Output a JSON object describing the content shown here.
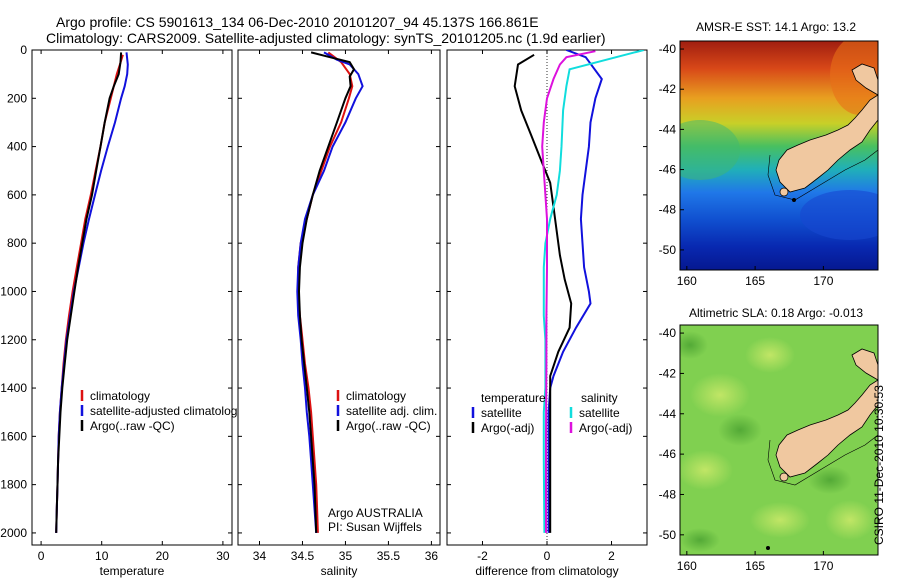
{
  "header": {
    "line1": "Argo profile: CS 5901613_134 06-Dec-2010 20101207_94 45.137S 166.861E",
    "line2": "Climatology: CARS2009. Satellite-adjusted climatology: synTS_20101205.nc (1.9d earlier)"
  },
  "stamp": "CSIRO 11-Dec-2010 10:30:53",
  "chart_data": [
    {
      "type": "line",
      "panel": "temperature",
      "xlabel": "temperature",
      "ylabel": "",
      "xlim": [
        -1.5,
        31.5
      ],
      "ylim": [
        2050,
        0
      ],
      "xticks": [
        0,
        10,
        20,
        30
      ],
      "yticks": [
        0,
        200,
        400,
        600,
        800,
        1000,
        1200,
        1400,
        1600,
        1800,
        2000
      ],
      "legend": [
        "climatology",
        "satellite-adjusted climatology",
        "Argo(..raw -QC)"
      ],
      "series": [
        {
          "name": "climatology",
          "color": "#dd1111",
          "points": [
            [
              13.5,
              20
            ],
            [
              13,
              60
            ],
            [
              12.5,
              100
            ],
            [
              11.5,
              200
            ],
            [
              10.5,
              300
            ],
            [
              9.8,
              400
            ],
            [
              9,
              500
            ],
            [
              8.2,
              600
            ],
            [
              7.3,
              700
            ],
            [
              6.6,
              800
            ],
            [
              5.9,
              900
            ],
            [
              5.2,
              1000
            ],
            [
              4.6,
              1100
            ],
            [
              4.1,
              1200
            ],
            [
              3.7,
              1300
            ],
            [
              3.4,
              1400
            ],
            [
              3.1,
              1500
            ],
            [
              2.9,
              1600
            ],
            [
              2.8,
              1700
            ],
            [
              2.7,
              1800
            ],
            [
              2.6,
              1900
            ],
            [
              2.5,
              2000
            ]
          ]
        },
        {
          "name": "satellite-adjusted climatology",
          "color": "#1111dd",
          "points": [
            [
              14.1,
              10
            ],
            [
              14.3,
              60
            ],
            [
              14.2,
              100
            ],
            [
              13.8,
              150
            ],
            [
              13.2,
              200
            ],
            [
              12.2,
              300
            ],
            [
              11,
              400
            ],
            [
              9.9,
              500
            ],
            [
              8.9,
              600
            ],
            [
              7.9,
              700
            ],
            [
              7,
              800
            ],
            [
              6.2,
              900
            ],
            [
              5.4,
              1000
            ],
            [
              4.8,
              1100
            ],
            [
              4.2,
              1200
            ],
            [
              3.8,
              1300
            ],
            [
              3.4,
              1400
            ],
            [
              3.1,
              1500
            ],
            [
              2.9,
              1600
            ],
            [
              2.8,
              1700
            ],
            [
              2.7,
              1800
            ],
            [
              2.6,
              1900
            ],
            [
              2.5,
              2000
            ]
          ]
        },
        {
          "name": "Argo(..raw -QC)",
          "color": "#000000",
          "points": [
            [
              13.2,
              10
            ],
            [
              13.1,
              50
            ],
            [
              12.8,
              100
            ],
            [
              12,
              150
            ],
            [
              11.3,
              200
            ],
            [
              10.5,
              300
            ],
            [
              9.8,
              400
            ],
            [
              9.1,
              500
            ],
            [
              8.4,
              600
            ],
            [
              7.5,
              700
            ],
            [
              6.8,
              800
            ],
            [
              6.1,
              900
            ],
            [
              5.5,
              1000
            ],
            [
              4.9,
              1100
            ],
            [
              4.3,
              1200
            ],
            [
              3.9,
              1300
            ],
            [
              3.5,
              1400
            ],
            [
              3.2,
              1500
            ],
            [
              3,
              1600
            ],
            [
              2.8,
              1700
            ],
            [
              2.7,
              1800
            ],
            [
              2.6,
              1900
            ],
            [
              2.5,
              2000
            ]
          ]
        }
      ]
    },
    {
      "type": "line",
      "panel": "salinity",
      "xlabel": "salinity",
      "ylabel": "",
      "xlim": [
        33.75,
        36.1
      ],
      "ylim": [
        2050,
        0
      ],
      "xticks": [
        34,
        34.5,
        35,
        35.5,
        36
      ],
      "xticklabels": [
        "34",
        "34.5",
        "35",
        "35.5",
        "36"
      ],
      "legend": [
        "climatology",
        "satellite adj. clim.",
        "Argo(..raw -QC)"
      ],
      "annotation": [
        "Argo AUSTRALIA",
        "PI: Susan Wijffels"
      ],
      "series": [
        {
          "name": "climatology",
          "color": "#dd1111",
          "points": [
            [
              34.8,
              10
            ],
            [
              34.95,
              50
            ],
            [
              35.05,
              100
            ],
            [
              35.08,
              150
            ],
            [
              35.04,
              200
            ],
            [
              34.95,
              300
            ],
            [
              34.82,
              400
            ],
            [
              34.72,
              500
            ],
            [
              34.62,
              600
            ],
            [
              34.55,
              700
            ],
            [
              34.48,
              800
            ],
            [
              34.45,
              900
            ],
            [
              34.45,
              1000
            ],
            [
              34.47,
              1100
            ],
            [
              34.5,
              1200
            ],
            [
              34.53,
              1300
            ],
            [
              34.57,
              1400
            ],
            [
              34.6,
              1500
            ],
            [
              34.62,
              1600
            ],
            [
              34.64,
              1700
            ],
            [
              34.66,
              1800
            ],
            [
              34.67,
              1900
            ],
            [
              34.68,
              2000
            ]
          ]
        },
        {
          "name": "satellite adj. clim.",
          "color": "#1111dd",
          "points": [
            [
              34.75,
              10
            ],
            [
              34.9,
              40
            ],
            [
              35.05,
              60
            ],
            [
              35.15,
              100
            ],
            [
              35.2,
              150
            ],
            [
              35.12,
              200
            ],
            [
              35,
              300
            ],
            [
              34.85,
              400
            ],
            [
              34.75,
              500
            ],
            [
              34.62,
              600
            ],
            [
              34.53,
              700
            ],
            [
              34.48,
              800
            ],
            [
              34.45,
              900
            ],
            [
              34.44,
              1000
            ],
            [
              34.45,
              1100
            ],
            [
              34.48,
              1200
            ],
            [
              34.5,
              1300
            ],
            [
              34.53,
              1400
            ],
            [
              34.55,
              1500
            ],
            [
              34.58,
              1600
            ],
            [
              34.6,
              1700
            ],
            [
              34.62,
              1800
            ],
            [
              34.64,
              1900
            ],
            [
              34.66,
              2000
            ]
          ]
        },
        {
          "name": "Argo(..raw -QC)",
          "color": "#000000",
          "points": [
            [
              34.6,
              10
            ],
            [
              34.82,
              30
            ],
            [
              35.05,
              50
            ],
            [
              35.1,
              80
            ],
            [
              35.05,
              110
            ],
            [
              35.06,
              150
            ],
            [
              35,
              200
            ],
            [
              34.9,
              300
            ],
            [
              34.8,
              400
            ],
            [
              34.7,
              500
            ],
            [
              34.62,
              600
            ],
            [
              34.55,
              700
            ],
            [
              34.5,
              800
            ],
            [
              34.47,
              900
            ],
            [
              34.46,
              1000
            ],
            [
              34.47,
              1100
            ],
            [
              34.49,
              1200
            ],
            [
              34.52,
              1300
            ],
            [
              34.55,
              1400
            ],
            [
              34.58,
              1500
            ],
            [
              34.6,
              1600
            ],
            [
              34.62,
              1700
            ],
            [
              34.64,
              1800
            ],
            [
              34.65,
              1900
            ],
            [
              34.66,
              2000
            ]
          ]
        }
      ]
    },
    {
      "type": "line",
      "panel": "difference",
      "xlabel": "difference from climatology",
      "ylabel": "",
      "xlim": [
        -3.1,
        3.1
      ],
      "ylim": [
        2050,
        0
      ],
      "xticks": [
        -2,
        0,
        2
      ],
      "legend_left_title": "temperature",
      "legend_right_title": "salinity",
      "legend": [
        "satellite",
        "Argo(-adj)",
        "satellite",
        "Argo(-adj)"
      ],
      "series": [
        {
          "name": "temperature satellite",
          "color": "#1111dd",
          "points": [
            [
              0.6,
              0
            ],
            [
              1.2,
              30
            ],
            [
              1.7,
              120
            ],
            [
              1.5,
              200
            ],
            [
              1.35,
              300
            ],
            [
              1.3,
              400
            ],
            [
              1.2,
              500
            ],
            [
              1.1,
              600
            ],
            [
              1.05,
              700
            ],
            [
              1.1,
              800
            ],
            [
              1.15,
              900
            ],
            [
              1.3,
              1000
            ],
            [
              1.35,
              1050
            ],
            [
              0.9,
              1150
            ],
            [
              0.5,
              1250
            ],
            [
              0.2,
              1350
            ],
            [
              0.1,
              1400
            ],
            [
              0.05,
              1500
            ],
            [
              0.05,
              1700
            ],
            [
              0.05,
              2000
            ]
          ]
        },
        {
          "name": "temperature Argo(-adj)",
          "color": "#000000",
          "points": [
            [
              -0.4,
              20
            ],
            [
              -0.9,
              60
            ],
            [
              -1,
              150
            ],
            [
              -0.8,
              250
            ],
            [
              -0.5,
              350
            ],
            [
              -0.2,
              450
            ],
            [
              0.1,
              550
            ],
            [
              0.2,
              650
            ],
            [
              0.3,
              750
            ],
            [
              0.4,
              850
            ],
            [
              0.55,
              950
            ],
            [
              0.75,
              1050
            ],
            [
              0.7,
              1150
            ],
            [
              0.35,
              1250
            ],
            [
              0.1,
              1350
            ],
            [
              0.1,
              1500
            ],
            [
              0.1,
              1700
            ],
            [
              0.1,
              2000
            ]
          ]
        },
        {
          "name": "salinity satellite",
          "color": "#11dddd",
          "points": [
            [
              3,
              0
            ],
            [
              0.7,
              80
            ],
            [
              0.6,
              150
            ],
            [
              0.5,
              250
            ],
            [
              0.45,
              400
            ],
            [
              0.4,
              500
            ],
            [
              0.3,
              600
            ],
            [
              0.1,
              700
            ],
            [
              -0.05,
              800
            ],
            [
              -0.1,
              900
            ],
            [
              -0.1,
              1100
            ],
            [
              -0.05,
              1200
            ],
            [
              -0.05,
              1400
            ],
            [
              -0.1,
              1500
            ],
            [
              -0.1,
              1700
            ],
            [
              -0.08,
              2000
            ]
          ]
        },
        {
          "name": "salinity Argo(-adj)",
          "color": "#dd11dd",
          "points": [
            [
              1.5,
              5
            ],
            [
              0.6,
              30
            ],
            [
              0.4,
              60
            ],
            [
              0.2,
              120
            ],
            [
              0,
              200
            ],
            [
              -0.1,
              300
            ],
            [
              -0.15,
              400
            ],
            [
              -0.1,
              500
            ],
            [
              -0.05,
              600
            ],
            [
              0,
              700
            ],
            [
              0,
              900
            ],
            [
              -0.02,
              1100
            ],
            [
              -0.02,
              1300
            ],
            [
              -0.03,
              1600
            ],
            [
              -0.03,
              2000
            ]
          ]
        }
      ]
    },
    {
      "type": "heatmap",
      "panel": "sst",
      "title": "AMSR-E SST: 14.1 Argo: 13.2",
      "xlim": [
        159.5,
        174
      ],
      "ylim": [
        -51,
        -39.6
      ],
      "xticks": [
        160,
        165,
        170
      ],
      "yticks": [
        -40,
        -42,
        -44,
        -46,
        -48,
        -50
      ],
      "colors": {
        "warm": "#c83018",
        "mid": "#38c060",
        "cool": "#1058d8",
        "cold": "#0818a0",
        "land": "#f0c8a0"
      }
    },
    {
      "type": "heatmap",
      "panel": "sla",
      "title": "Altimetric SLA: 0.18 Argo: -0.013",
      "xlim": [
        159.5,
        174
      ],
      "ylim": [
        -51,
        -39.6
      ],
      "xticks": [
        160,
        165,
        170
      ],
      "yticks": [
        -40,
        -42,
        -44,
        -46,
        -48,
        -50
      ],
      "colors": {
        "base": "#80d050",
        "light": "#b8e060",
        "dark": "#58b038",
        "land": "#f0c8a0"
      }
    }
  ]
}
